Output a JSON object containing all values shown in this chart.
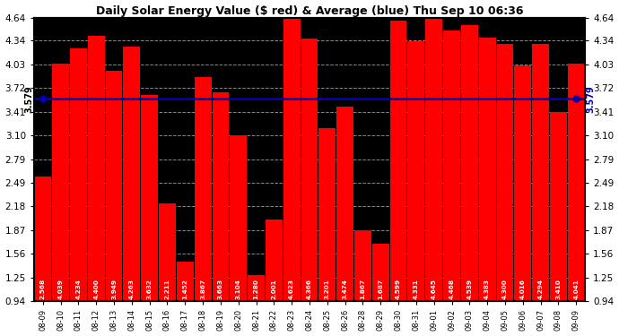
{
  "title": "Daily Solar Energy Value ($ red) & Average (blue) Thu Sep 10 06:36",
  "average": 3.579,
  "ylim": [
    0.94,
    4.64
  ],
  "yticks": [
    0.94,
    1.25,
    1.56,
    1.87,
    2.18,
    2.49,
    2.79,
    3.1,
    3.41,
    3.72,
    4.03,
    4.34,
    4.64
  ],
  "bar_color": "#ff0000",
  "avg_color": "#0000bb",
  "background": "#ffffff",
  "plot_bg": "#000000",
  "grid_color": "#888888",
  "categories": [
    "08-09",
    "08-10",
    "08-11",
    "08-12",
    "08-13",
    "08-14",
    "08-15",
    "08-16",
    "08-17",
    "08-18",
    "08-19",
    "08-20",
    "08-21",
    "08-22",
    "08-23",
    "08-24",
    "08-25",
    "08-26",
    "08-28",
    "08-29",
    "08-30",
    "08-31",
    "09-01",
    "09-02",
    "09-03",
    "09-04",
    "09-05",
    "09-06",
    "09-07",
    "09-08",
    "09-09"
  ],
  "values": [
    2.568,
    4.039,
    4.234,
    4.4,
    3.949,
    4.263,
    3.632,
    2.211,
    1.452,
    3.867,
    3.663,
    3.104,
    1.28,
    2.001,
    4.623,
    4.366,
    3.201,
    3.474,
    1.867,
    1.687,
    4.599,
    4.331,
    4.645,
    4.468,
    4.539,
    4.383,
    4.3,
    4.016,
    4.294,
    3.41,
    4.041
  ]
}
